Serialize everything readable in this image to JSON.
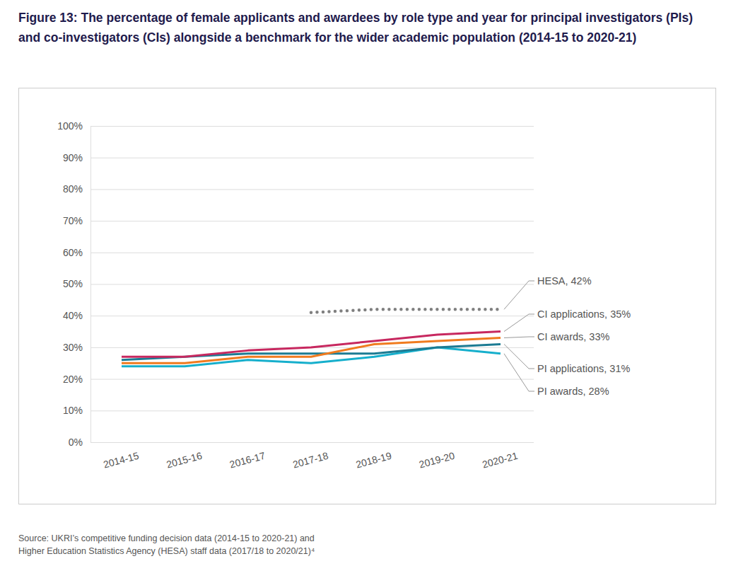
{
  "chart_data": {
    "type": "line",
    "title": "Figure 13: The percentage of female applicants and awardees by role type and year for principal investigators (PIs) and co-investigators (CIs) alongside a benchmark for the wider academic population (2014-15 to 2020-21)",
    "source": [
      "Source: UKRI’s competitive funding decision data (2014-15 to 2020-21) and",
      "Higher Education Statistics Agency (HESA) staff data (2017/18 to 2020/21)⁴"
    ],
    "categories": [
      "2014-15",
      "2015-16",
      "2016-17",
      "2017-18",
      "2018-19",
      "2019-20",
      "2020-21"
    ],
    "series": [
      {
        "name": "PI awards",
        "color": "#16afcc",
        "line_style": "solid",
        "values": [
          24,
          24,
          26,
          25,
          27,
          30,
          28
        ],
        "value_labels": [
          null,
          null,
          null,
          null,
          null,
          null,
          "PI awards, 28%"
        ]
      },
      {
        "name": "PI applications",
        "color": "#1c7b93",
        "line_style": "solid",
        "values": [
          26,
          27,
          28,
          28,
          28,
          30,
          31
        ],
        "value_labels": [
          null,
          null,
          null,
          null,
          null,
          null,
          "PI applications, 31%"
        ]
      },
      {
        "name": "CI awards",
        "color": "#f07b1f",
        "line_style": "solid",
        "values": [
          25,
          25,
          27,
          27,
          31,
          32,
          33
        ],
        "value_labels": [
          null,
          null,
          null,
          null,
          null,
          null,
          "CI awards, 33%"
        ]
      },
      {
        "name": "CI applications",
        "color": "#c7285f",
        "line_style": "solid",
        "values": [
          27,
          27,
          29,
          30,
          32,
          34,
          35
        ],
        "value_labels": [
          null,
          null,
          null,
          null,
          null,
          null,
          "CI applications, 35%"
        ]
      },
      {
        "name": "HESA",
        "color": "#808080",
        "line_style": "dotted",
        "values": [
          null,
          null,
          null,
          41,
          42,
          42,
          42
        ],
        "value_labels": [
          null,
          null,
          null,
          null,
          null,
          null,
          "HESA, 42%"
        ]
      }
    ],
    "ylim": [
      0,
      100
    ],
    "yticks": [
      {
        "value": 0,
        "label": "0%"
      },
      {
        "value": 10,
        "label": "10%"
      },
      {
        "value": 20,
        "label": "20%"
      },
      {
        "value": 30,
        "label": "30%"
      },
      {
        "value": 40,
        "label": "40%"
      },
      {
        "value": 50,
        "label": "50%"
      },
      {
        "value": 60,
        "label": "60%"
      },
      {
        "value": 70,
        "label": "70%"
      },
      {
        "value": 80,
        "label": "80%"
      },
      {
        "value": 90,
        "label": "90%"
      },
      {
        "value": 100,
        "label": "100%"
      }
    ],
    "grid": true
  }
}
